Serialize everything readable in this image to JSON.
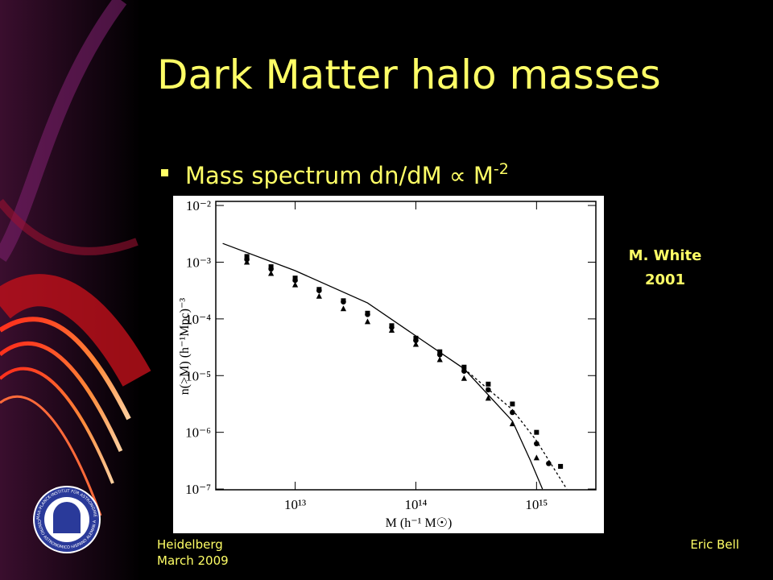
{
  "slide": {
    "title": "Dark Matter halo masses",
    "bullet": {
      "text": "Mass spectrum dn/dM ∝ M",
      "superscript": "-2"
    },
    "credit": [
      "M. White",
      "2001"
    ],
    "footer_left": [
      "Heidelberg",
      "March 2009"
    ],
    "footer_right": "Eric Bell",
    "logo": [
      "MAX-PLANCK-INSTITUT FÜR ASTRONOMIE HEIDELBERG",
      "CENTRO ASTRONOMICO HISPANO ALEMAN ALMERIA"
    ]
  },
  "chart_data": {
    "type": "scatter",
    "x_label": "M  (h⁻¹  M☉)",
    "y_label": "n(>M)    (h⁻¹Mpc)⁻³",
    "log_x": true,
    "log_y": true,
    "xlim": [
      2200000000000.0,
      3100000000000000.0
    ],
    "ylim": [
      9.7e-08,
      0.0118
    ],
    "xticks": [
      {
        "value": 10000000000000.0,
        "label": "10¹³"
      },
      {
        "value": 100000000000000.0,
        "label": "10¹⁴"
      },
      {
        "value": 1000000000000000.0,
        "label": "10¹⁵"
      }
    ],
    "yticks": [
      {
        "value": 0.01,
        "label": "10⁻²"
      },
      {
        "value": 0.001,
        "label": "10⁻³"
      },
      {
        "value": 0.0001,
        "label": "10⁻⁴"
      },
      {
        "value": 1e-05,
        "label": "10⁻⁵"
      },
      {
        "value": 1e-06,
        "label": "10⁻⁶"
      },
      {
        "value": 1e-07,
        "label": "10⁻⁷"
      }
    ],
    "series": [
      {
        "marker": "square",
        "color": "#000000",
        "x": [
          3980000000000.0,
          6310000000000.0,
          10000000000000.0,
          15800000000000.0,
          25100000000000.0,
          39800000000000.0,
          63100000000000.0,
          100000000000000.0,
          158000000000000.0,
          251000000000000.0,
          398000000000000.0,
          631000000000000.0,
          1000000000000000.0,
          1580000000000000.0
        ],
        "values": [
          0.00126,
          0.000832,
          0.000525,
          0.000331,
          0.000209,
          0.000126,
          7.59e-05,
          4.57e-05,
          2.63e-05,
          1.41e-05,
          7.08e-06,
          3.16e-06,
          1e-06,
          2.51e-07
        ]
      },
      {
        "marker": "circle",
        "color": "#000000",
        "x": [
          3980000000000.0,
          6310000000000.0,
          10000000000000.0,
          15800000000000.0,
          25100000000000.0,
          39800000000000.0,
          63100000000000.0,
          100000000000000.0,
          158000000000000.0,
          251000000000000.0,
          398000000000000.0,
          631000000000000.0,
          1000000000000000.0,
          1260000000000000.0
        ],
        "values": [
          0.00112,
          0.000759,
          0.000479,
          0.000316,
          0.0002,
          0.00012,
          7.08e-05,
          4.17e-05,
          2.34e-05,
          1.2e-05,
          5.62e-06,
          2.24e-06,
          6.31e-07,
          2.82e-07
        ]
      },
      {
        "marker": "triangle",
        "color": "#000000",
        "x": [
          3980000000000.0,
          6310000000000.0,
          10000000000000.0,
          15800000000000.0,
          25100000000000.0,
          39800000000000.0,
          63100000000000.0,
          100000000000000.0,
          158000000000000.0,
          251000000000000.0,
          398000000000000.0,
          631000000000000.0,
          1000000000000000.0
        ],
        "values": [
          0.001,
          0.000631,
          0.000398,
          0.000251,
          0.000151,
          8.91e-05,
          6.31e-05,
          3.55e-05,
          1.91e-05,
          8.91e-06,
          3.98e-06,
          1.41e-06,
          3.55e-07
        ]
      },
      {
        "line": "solid",
        "color": "#000000",
        "x": [
          2510000000000.0,
          10000000000000.0,
          39800000000000.0,
          100000000000000.0,
          251000000000000.0,
          631000000000000.0,
          891000000000000.0,
          1120000000000000.0
        ],
        "values": [
          0.00214,
          0.000708,
          0.000191,
          5.01e-05,
          1.32e-05,
          1.58e-06,
          3.16e-07,
          1e-07
        ]
      },
      {
        "line": "dashed",
        "color": "#000000",
        "x": [
          251000000000000.0,
          631000000000000.0,
          1000000000000000.0,
          1780000000000000.0
        ],
        "values": [
          1.32e-05,
          2.51e-06,
          7.08e-07,
          1e-07
        ]
      }
    ]
  }
}
